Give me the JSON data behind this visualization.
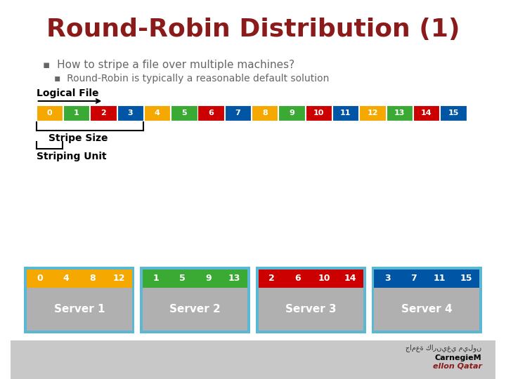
{
  "title": "Round-Robin Distribution (1)",
  "title_color": "#8B1A1A",
  "bullet1": "How to stripe a file over multiple machines?",
  "bullet2": "Round-Robin is typically a reasonable default solution",
  "bullet_color": "#666666",
  "bg_color": "#FFFFFF",
  "logical_file_label": "Logical File",
  "stripe_size_label": "Stripe Size",
  "striping_unit_label": "Striping Unit",
  "block_colors": [
    "#F5A800",
    "#3AAA35",
    "#CC0000",
    "#0055A5",
    "#F5A800",
    "#3AAA35",
    "#CC0000",
    "#0055A5",
    "#F5A800",
    "#3AAA35",
    "#CC0000",
    "#0055A5",
    "#F5A800",
    "#3AAA35",
    "#CC0000",
    "#0055A5"
  ],
  "block_labels": [
    "0",
    "1",
    "2",
    "3",
    "4",
    "5",
    "6",
    "7",
    "8",
    "9",
    "10",
    "11",
    "12",
    "13",
    "14",
    "15"
  ],
  "server_colors": [
    "#F5A800",
    "#3AAA35",
    "#CC0000",
    "#0055A5"
  ],
  "server_labels": [
    "Server 1",
    "Server 2",
    "Server 3",
    "Server 4"
  ],
  "server_block_labels": [
    [
      "0",
      "4",
      "8",
      "12"
    ],
    [
      "1",
      "5",
      "9",
      "13"
    ],
    [
      "2",
      "6",
      "10",
      "14"
    ],
    [
      "3",
      "7",
      "11",
      "15"
    ]
  ],
  "server_border_color": "#5BB8D4",
  "server_bg_color": "#B0B0B0",
  "bottom_bg_color": "#C8C8C8",
  "carnegie_color": "#8B1A1A"
}
